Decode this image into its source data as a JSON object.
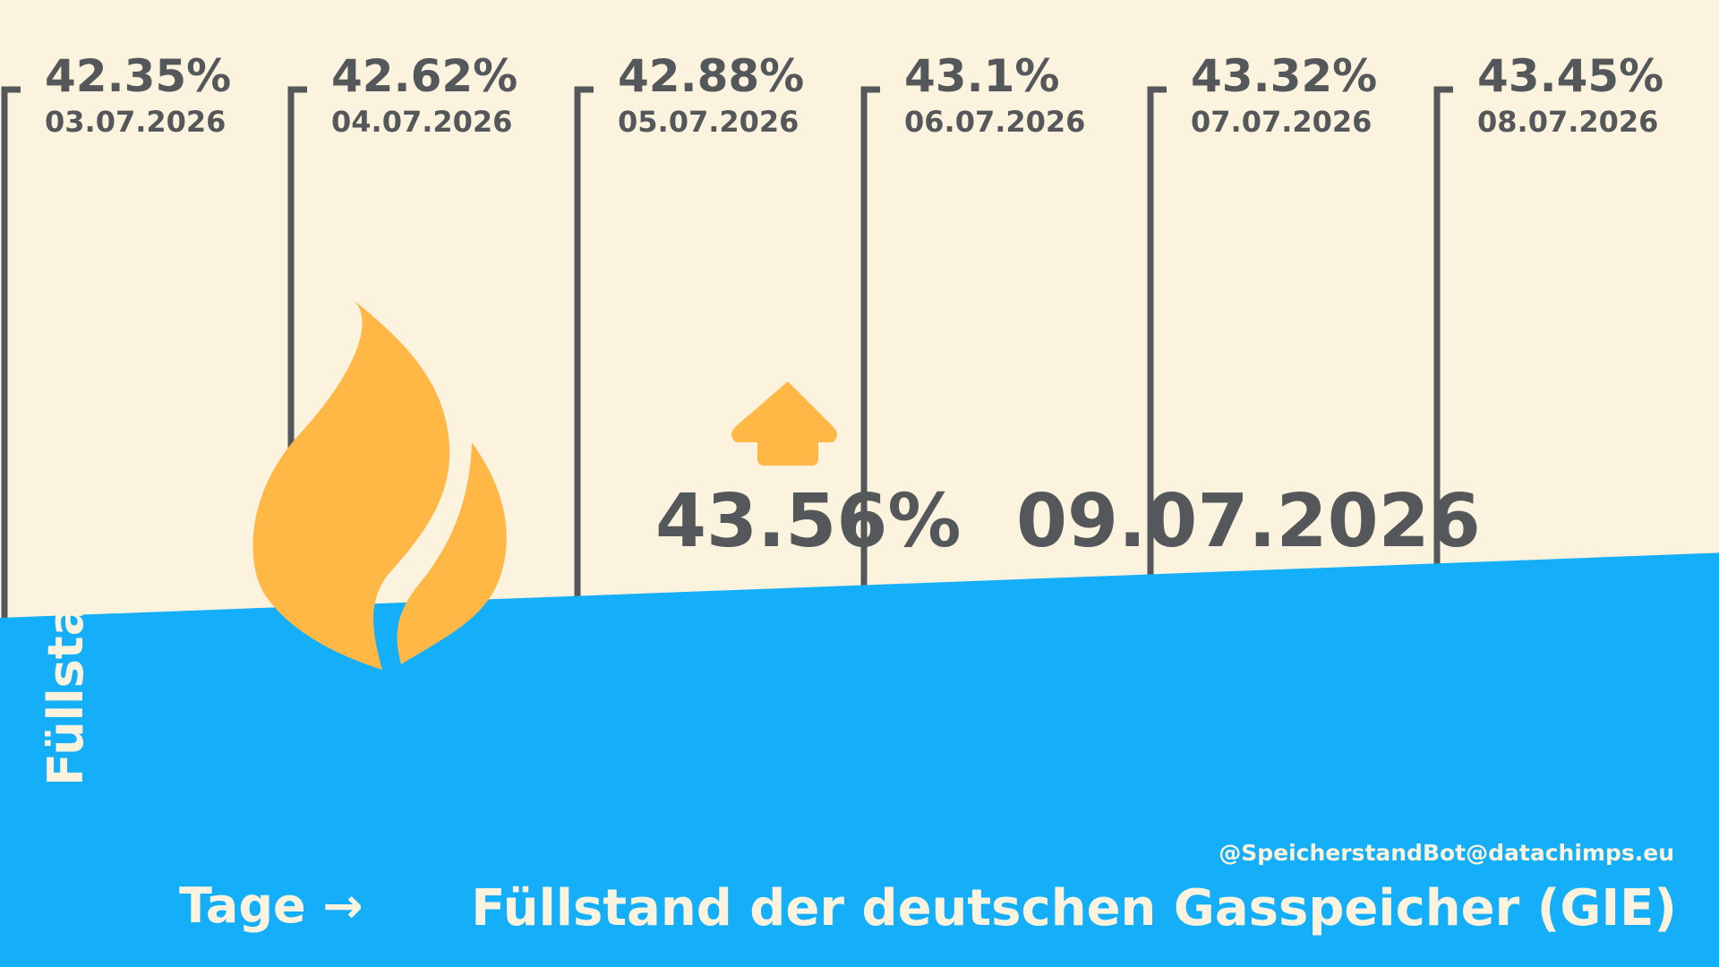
{
  "chart_data": {
    "type": "bar",
    "categories": [
      "03.07.2026",
      "04.07.2026",
      "05.07.2026",
      "06.07.2026",
      "07.07.2026",
      "08.07.2026"
    ],
    "values": [
      42.35,
      42.62,
      42.88,
      43.1,
      43.32,
      43.45
    ],
    "value_labels": [
      "42.35%",
      "42.62%",
      "42.88%",
      "43.1%",
      "43.32%",
      "43.45%"
    ],
    "current": {
      "value": 43.56,
      "value_label": "43.56%",
      "date": "09.07.2026",
      "trend": "up"
    },
    "title": "Füllstand der deutschen Gasspeicher (GIE)",
    "xlabel": "Tage →",
    "ylabel": "Füllstand →",
    "credit": "@SpeicherstandBot@datachimps.eu",
    "ylim": [
      41.5,
      44.6
    ],
    "grid": false,
    "legend": "none",
    "colors": {
      "background": "#fcf3df",
      "fill_level": "#14aff8",
      "brackets": "#54585a",
      "accent": "#ffb845",
      "text_light": "#fcf3df"
    },
    "icons": [
      "flame-icon",
      "arrow-up-icon"
    ]
  }
}
